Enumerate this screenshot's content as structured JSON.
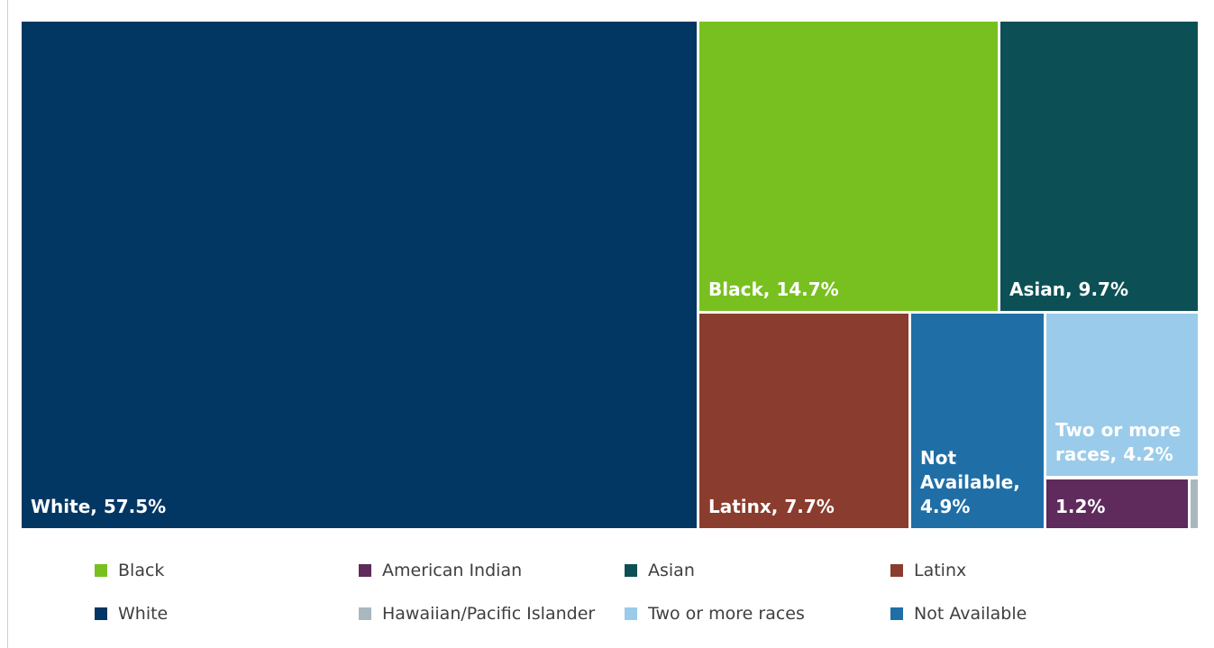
{
  "chart_data": {
    "type": "treemap",
    "title": "",
    "segments": [
      {
        "key": "white",
        "name": "White",
        "value": 57.5,
        "label": "White, 57.5%",
        "color": "#023764"
      },
      {
        "key": "black",
        "name": "Black",
        "value": 14.7,
        "label": "Black, 14.7%",
        "color": "#78c020"
      },
      {
        "key": "asian",
        "name": "Asian",
        "value": 9.7,
        "label": "Asian, 9.7%",
        "color": "#0c5055"
      },
      {
        "key": "latinx",
        "name": "Latinx",
        "value": 7.7,
        "label": "Latinx, 7.7%",
        "color": "#8a3c2e"
      },
      {
        "key": "not_available",
        "name": "Not Available",
        "value": 4.9,
        "label": "Not\nAvailable,\n4.9%",
        "color": "#1f6fa6"
      },
      {
        "key": "two_or_more",
        "name": "Two or more races",
        "value": 4.2,
        "label": "Two or more\nraces, 4.2%",
        "color": "#9acbea"
      },
      {
        "key": "american_indian",
        "name": "American Indian",
        "value": 1.2,
        "label": "1.2%",
        "color": "#5f2a5c"
      },
      {
        "key": "hawaiian",
        "name": "Hawaiian/Pacific Islander",
        "value": 0.2,
        "label": "",
        "color": "#a9b8bf"
      }
    ],
    "legend": {
      "placement": "bottom",
      "items": [
        {
          "name": "Black",
          "color": "#78c020"
        },
        {
          "name": "American Indian",
          "color": "#5f2a5c"
        },
        {
          "name": "Asian",
          "color": "#0c5055"
        },
        {
          "name": "Latinx",
          "color": "#8a3c2e"
        },
        {
          "name": "White",
          "color": "#023764"
        },
        {
          "name": "Hawaiian/Pacific Islander",
          "color": "#a9b8bf"
        },
        {
          "name": "Two or more races",
          "color": "#9acbea"
        },
        {
          "name": "Not Available",
          "color": "#1f6fa6"
        }
      ]
    }
  }
}
